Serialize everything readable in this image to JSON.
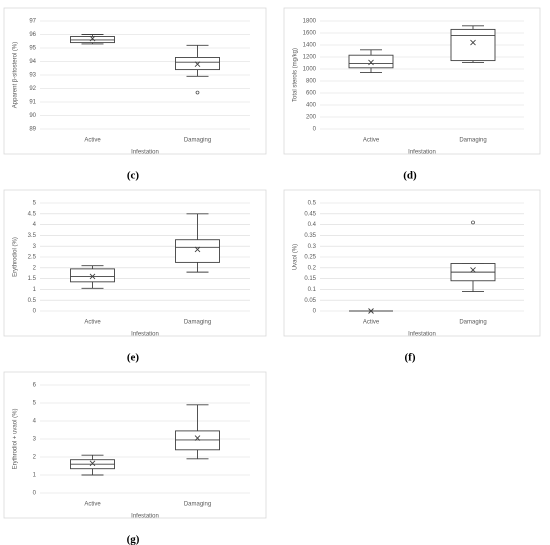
{
  "chart_data": [
    {
      "type": "box",
      "label": "(c)",
      "ylabel": "Apparent β-sitosterol (%)",
      "xlabel": "Infestation",
      "color": "#404040",
      "categories": [
        "Active",
        "Damaging"
      ],
      "ylim": [
        89,
        97
      ],
      "yticks": [
        89,
        90,
        91,
        92,
        93,
        94,
        95,
        96,
        97
      ],
      "grid": true,
      "boxes": [
        {
          "min": 95.3,
          "q1": 95.4,
          "median": 95.6,
          "q3": 95.85,
          "max": 96.0,
          "mean": 95.7
        },
        {
          "min": 92.9,
          "q1": 93.4,
          "median": 93.95,
          "q3": 94.3,
          "max": 95.2,
          "mean": 93.8,
          "outliers": [
            91.7
          ]
        }
      ]
    },
    {
      "type": "box",
      "label": "(d)",
      "ylabel": "Total sterols (mg/kg)",
      "xlabel": "Infestation",
      "color": "#404040",
      "categories": [
        "Active",
        "Damaging"
      ],
      "ylim": [
        0,
        1800
      ],
      "yticks": [
        0,
        200,
        400,
        600,
        800,
        1000,
        1200,
        1400,
        1600,
        1800
      ],
      "grid": true,
      "boxes": [
        {
          "min": 940,
          "q1": 1020,
          "median": 1090,
          "q3": 1230,
          "max": 1320,
          "mean": 1110
        },
        {
          "min": 1110,
          "q1": 1140,
          "median": 1560,
          "q3": 1660,
          "max": 1720,
          "mean": 1440
        }
      ]
    },
    {
      "type": "box",
      "label": "(e)",
      "ylabel": "Erythrodiol (%)",
      "xlabel": "Infestation",
      "color": "#404040",
      "categories": [
        "Active",
        "Damaging"
      ],
      "ylim": [
        0,
        5
      ],
      "yticks": [
        0,
        0.5,
        1,
        1.5,
        2,
        2.5,
        3,
        3.5,
        4,
        4.5,
        5
      ],
      "grid": true,
      "boxes": [
        {
          "min": 1.05,
          "q1": 1.35,
          "median": 1.6,
          "q3": 1.95,
          "max": 2.1,
          "mean": 1.6
        },
        {
          "min": 1.8,
          "q1": 2.25,
          "median": 2.95,
          "q3": 3.3,
          "max": 4.5,
          "mean": 2.85
        }
      ]
    },
    {
      "type": "box",
      "label": "(f)",
      "ylabel": "Uvaol (%)",
      "xlabel": "Infestation",
      "color": "#404040",
      "categories": [
        "Active",
        "Damaging"
      ],
      "ylim": [
        0,
        0.5
      ],
      "yticks": [
        0,
        0.05,
        0.1,
        0.15,
        0.2,
        0.25,
        0.3,
        0.35,
        0.4,
        0.45,
        0.5
      ],
      "grid": true,
      "boxes": [
        {
          "min": 0,
          "q1": 0,
          "median": 0,
          "q3": 0,
          "max": 0,
          "mean": 0
        },
        {
          "min": 0.09,
          "q1": 0.14,
          "median": 0.18,
          "q3": 0.22,
          "max": 0.22,
          "mean": 0.19,
          "outliers": [
            0.41
          ]
        }
      ]
    },
    {
      "type": "box",
      "label": "(g)",
      "ylabel": "Erythrodiol + uvaol (%)",
      "xlabel": "Infestation",
      "color": "#404040",
      "categories": [
        "Active",
        "Damaging"
      ],
      "ylim": [
        0,
        6
      ],
      "yticks": [
        0,
        1,
        2,
        3,
        4,
        5,
        6
      ],
      "grid": true,
      "boxes": [
        {
          "min": 1.0,
          "q1": 1.35,
          "median": 1.6,
          "q3": 1.85,
          "max": 2.1,
          "mean": 1.65
        },
        {
          "min": 1.9,
          "q1": 2.4,
          "median": 2.95,
          "q3": 3.45,
          "max": 4.9,
          "mean": 3.05
        }
      ]
    }
  ]
}
